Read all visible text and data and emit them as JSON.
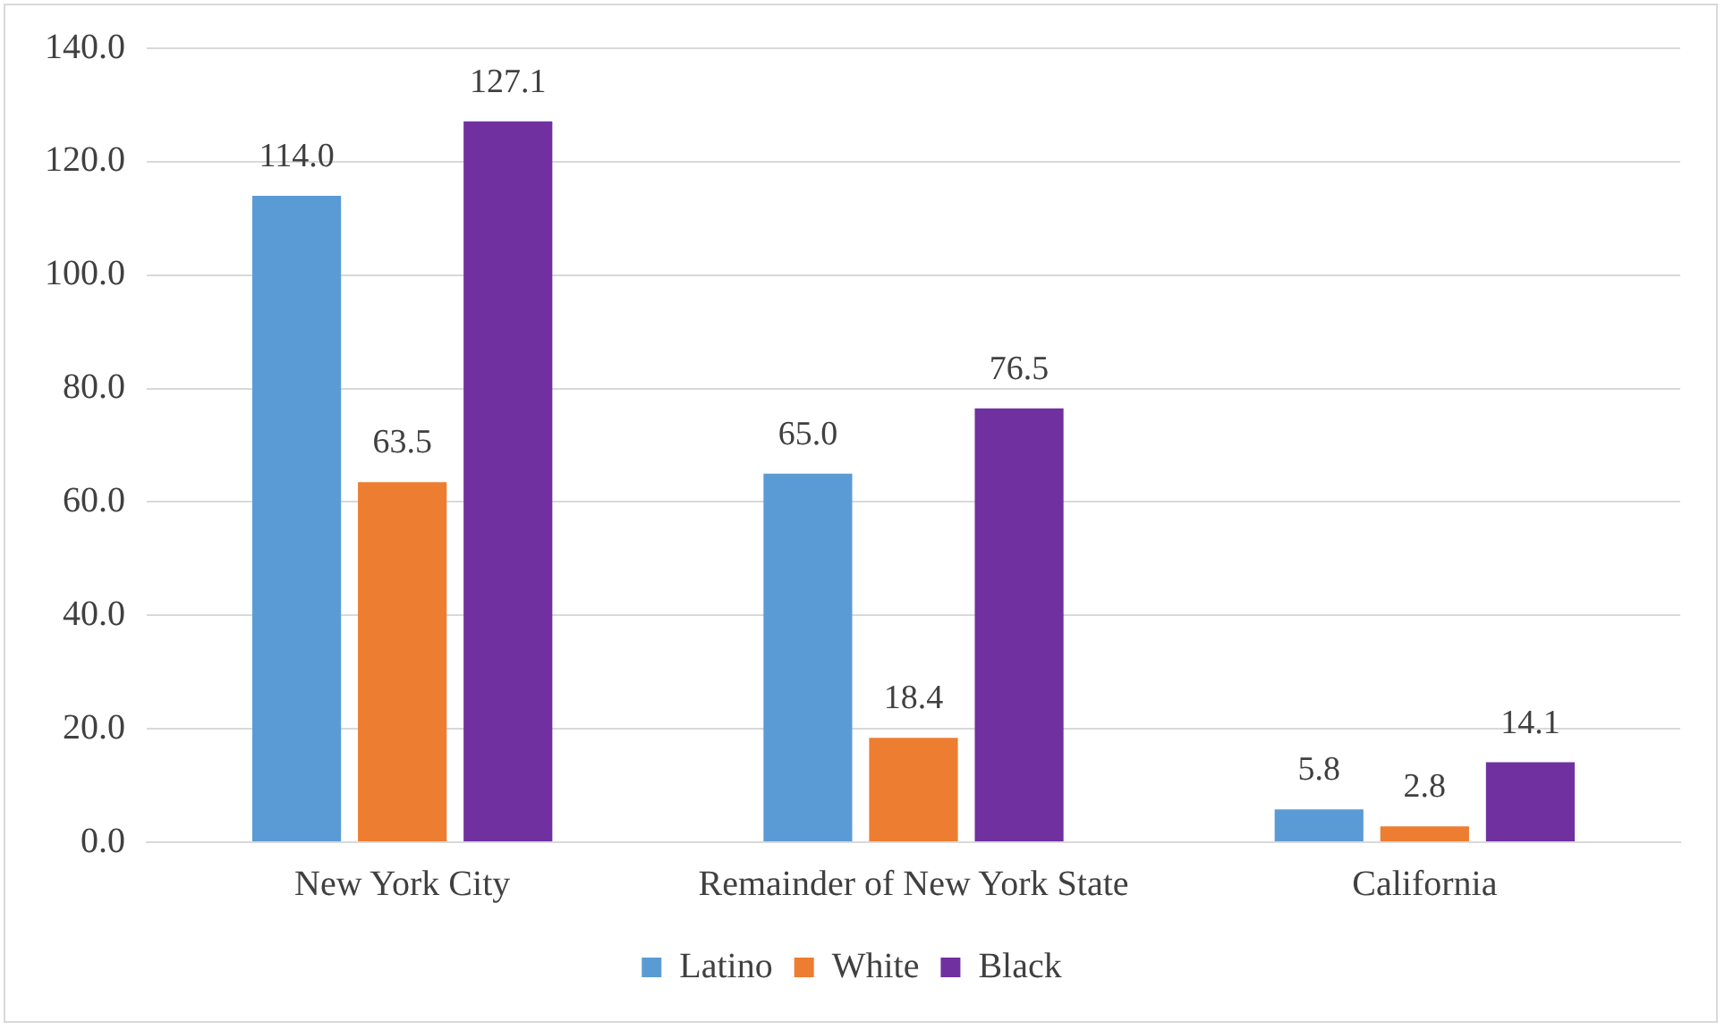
{
  "chart_data": {
    "type": "bar",
    "categories": [
      "New York City",
      "Remainder of New York State",
      "California"
    ],
    "series": [
      {
        "name": "Latino",
        "color": "#5b9bd5",
        "values": [
          114.0,
          65.0,
          5.8
        ],
        "value_labels": [
          "114.0",
          "65.0",
          "5.8"
        ]
      },
      {
        "name": "White",
        "color": "#ed7d31",
        "values": [
          63.5,
          18.4,
          2.8
        ],
        "value_labels": [
          "63.5",
          "18.4",
          "2.8"
        ]
      },
      {
        "name": "Black",
        "color": "#7030a0",
        "values": [
          127.1,
          76.5,
          14.1
        ],
        "value_labels": [
          "127.1",
          "76.5",
          "14.1"
        ]
      }
    ],
    "ylim": [
      0,
      140
    ],
    "yticks": [
      {
        "value": 0,
        "label": "0.0"
      },
      {
        "value": 20,
        "label": "20.0"
      },
      {
        "value": 40,
        "label": "40.0"
      },
      {
        "value": 60,
        "label": "60.0"
      },
      {
        "value": 80,
        "label": "80.0"
      },
      {
        "value": 100,
        "label": "100.0"
      },
      {
        "value": 120,
        "label": "120.0"
      },
      {
        "value": 140,
        "label": "140.0"
      }
    ],
    "grid": "y",
    "legend": "bottom"
  }
}
